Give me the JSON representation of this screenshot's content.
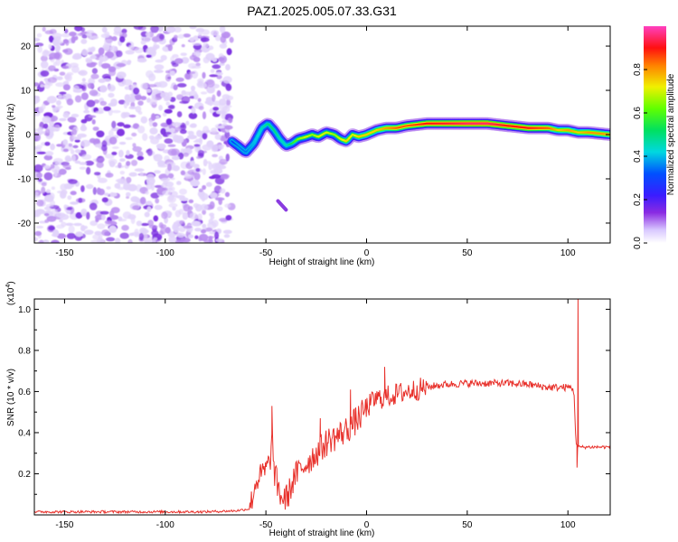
{
  "title": "PAZ1.2025.005.07.33.G31",
  "chart_data": [
    {
      "type": "heatmap",
      "xlabel": "Height of straight line (km)",
      "ylabel": "Frequency (Hz)",
      "xlim": [
        -165,
        121
      ],
      "ylim": [
        -24.5,
        24.5
      ],
      "x_ticks": [
        "-150",
        "-100",
        "-50",
        "0",
        "50",
        "100"
      ],
      "y_ticks": [
        "-20",
        "-10",
        "0",
        "10",
        "20"
      ],
      "colorbar": {
        "label": "Normalized spectral amplitude",
        "range": [
          0,
          1
        ],
        "ticks": [
          "0.0",
          "0.2",
          "0.4",
          "0.6",
          "0.8"
        ],
        "colormap": "rainbow (white-violet-blue-cyan-green-yellow-red-magenta)"
      },
      "noise_region_x": [
        -165,
        -67
      ],
      "ridge": {
        "x": [
          -67,
          -64,
          -60,
          -56,
          -52,
          -49,
          -46,
          -43,
          -40,
          -37,
          -34,
          -30,
          -27,
          -24,
          -20,
          -16,
          -13,
          -10,
          -7,
          -4,
          0,
          5,
          10,
          15,
          20,
          30,
          40,
          50,
          60,
          70,
          80,
          90,
          95,
          100,
          105,
          110,
          121
        ],
        "frequency_hz": [
          -1.5,
          -2.5,
          -4.0,
          -2.0,
          1.5,
          2.5,
          1.0,
          -1.0,
          -2.5,
          -2.0,
          -1.0,
          -0.5,
          0.0,
          -0.5,
          0.5,
          0.0,
          -1.0,
          -1.5,
          0.0,
          -0.5,
          0.0,
          1.0,
          1.5,
          1.5,
          2.0,
          2.5,
          2.5,
          2.5,
          2.5,
          2.0,
          1.5,
          1.5,
          1.0,
          1.0,
          0.5,
          0.5,
          0.0
        ],
        "amplitude": [
          0.3,
          0.35,
          0.35,
          0.4,
          0.45,
          0.5,
          0.5,
          0.45,
          0.45,
          0.55,
          0.65,
          0.7,
          0.65,
          0.7,
          0.7,
          0.65,
          0.7,
          0.75,
          0.7,
          0.75,
          0.75,
          0.75,
          0.8,
          0.85,
          0.85,
          0.9,
          0.92,
          0.95,
          0.95,
          0.9,
          0.9,
          0.85,
          0.75,
          0.8,
          0.75,
          0.8,
          0.8
        ]
      },
      "isolated_blob": {
        "x": [
          -44,
          -40
        ],
        "frequency_hz": [
          -15,
          -17
        ]
      }
    },
    {
      "type": "line",
      "xlabel": "Height of straight line (km)",
      "ylabel": "SNR (10 * v/v)",
      "y_scale_label": "(x10",
      "y_scale_exponent": "4",
      "y_scale_suffix": ")",
      "xlim": [
        -165,
        121
      ],
      "ylim": [
        0,
        1.05
      ],
      "x_ticks": [
        "-150",
        "-100",
        "-50",
        "0",
        "50",
        "100"
      ],
      "y_ticks": [
        "0.2",
        "0.4",
        "0.6",
        "0.8",
        "1.0"
      ],
      "series": [
        {
          "color": "#e8302a",
          "x": [
            -165,
            -140,
            -120,
            -100,
            -80,
            -65,
            -58,
            -55,
            -52,
            -50,
            -48,
            -47,
            -46,
            -44,
            -42,
            -40,
            -38,
            -36,
            -33,
            -30,
            -27,
            -24,
            -21,
            -18,
            -15,
            -12,
            -9,
            -6,
            -3,
            0,
            4,
            8,
            12,
            16,
            20,
            25,
            30,
            35,
            40,
            50,
            60,
            70,
            80,
            90,
            96,
            100,
            102,
            103,
            104,
            105,
            106,
            110,
            121
          ],
          "y": [
            0.015,
            0.015,
            0.015,
            0.015,
            0.015,
            0.02,
            0.03,
            0.16,
            0.2,
            0.22,
            0.25,
            0.38,
            0.22,
            0.13,
            0.08,
            0.08,
            0.12,
            0.18,
            0.22,
            0.25,
            0.28,
            0.31,
            0.34,
            0.37,
            0.38,
            0.4,
            0.42,
            0.45,
            0.48,
            0.52,
            0.56,
            0.57,
            0.58,
            0.59,
            0.6,
            0.61,
            0.62,
            0.63,
            0.635,
            0.64,
            0.64,
            0.64,
            0.635,
            0.62,
            0.62,
            0.62,
            0.62,
            0.6,
            0.35,
            0.33,
            0.33,
            0.33,
            0.33
          ],
          "spikes": [
            {
              "x": -47,
              "y": 0.53
            },
            {
              "x": -23,
              "y": 0.47
            },
            {
              "x": -8,
              "y": 0.61
            },
            {
              "x": 9,
              "y": 0.72
            },
            {
              "x": 105,
              "y": 1.05
            },
            {
              "x": 104.5,
              "y": 0.23
            }
          ]
        }
      ]
    }
  ]
}
